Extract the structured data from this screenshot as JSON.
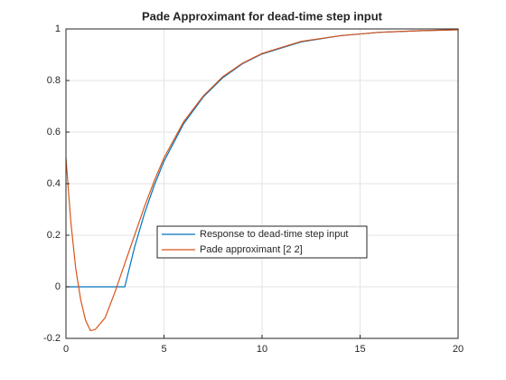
{
  "chart_data": {
    "type": "line",
    "title": "Pade Approximant for dead-time step input",
    "x": [
      0,
      0.25,
      0.5,
      0.75,
      1,
      1.25,
      1.5,
      2,
      2.5,
      3,
      3.5,
      4,
      4.5,
      5,
      6,
      7,
      8,
      9,
      10,
      12,
      14,
      16,
      18,
      20
    ],
    "series": [
      {
        "name": "Response to dead-time step input",
        "color": "#0072bd",
        "values": [
          0,
          0,
          0,
          0,
          0,
          0,
          0,
          0,
          0,
          0,
          0.154,
          0.283,
          0.393,
          0.487,
          0.632,
          0.736,
          0.811,
          0.865,
          0.903,
          0.95,
          0.974,
          0.987,
          0.993,
          0.997
        ]
      },
      {
        "name": "Pade approximant [2 2]",
        "color": "#d95319",
        "values": [
          0.5,
          0.25,
          0.07,
          -0.05,
          -0.13,
          -0.17,
          -0.165,
          -0.12,
          -0.02,
          0.09,
          0.2,
          0.31,
          0.41,
          0.5,
          0.64,
          0.74,
          0.815,
          0.867,
          0.905,
          0.952,
          0.974,
          0.987,
          0.993,
          0.997
        ]
      }
    ],
    "xlim": [
      0,
      20
    ],
    "xticks": [
      0,
      5,
      10,
      15,
      20
    ],
    "ylim": [
      -0.2,
      1
    ],
    "yticks": [
      -0.2,
      0,
      0.2,
      0.4,
      0.6,
      0.8,
      1
    ],
    "grid": true
  }
}
